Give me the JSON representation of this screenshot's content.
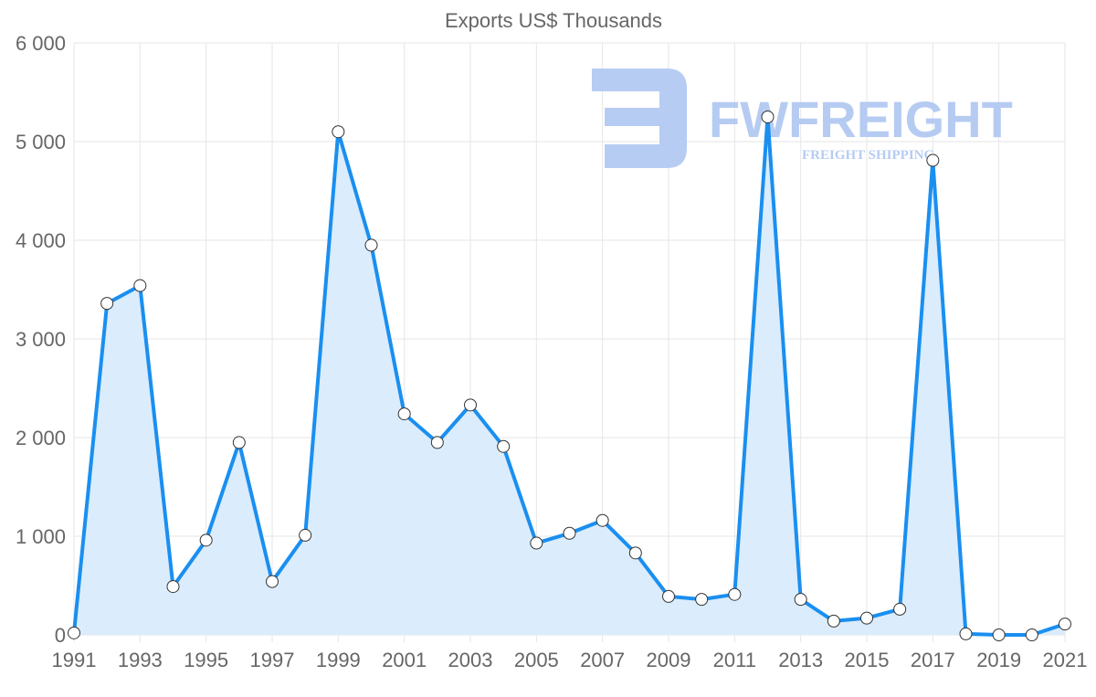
{
  "chart_data": {
    "type": "line",
    "title": "Exports US$ Thousands",
    "xlabel": "",
    "ylabel": "",
    "x": [
      1991,
      1992,
      1993,
      1994,
      1995,
      1996,
      1997,
      1998,
      1999,
      2000,
      2001,
      2002,
      2003,
      2004,
      2005,
      2006,
      2007,
      2008,
      2009,
      2010,
      2011,
      2012,
      2013,
      2014,
      2015,
      2016,
      2017,
      2018,
      2019,
      2020,
      2021
    ],
    "series": [
      {
        "name": "Exports US$ Thousands",
        "values": [
          20,
          3360,
          3540,
          490,
          960,
          1950,
          540,
          1010,
          5100,
          3950,
          2240,
          1950,
          2330,
          1910,
          930,
          1030,
          1160,
          830,
          390,
          360,
          410,
          5250,
          360,
          140,
          170,
          260,
          4810,
          10,
          0,
          0,
          110
        ]
      }
    ],
    "xticks": [
      "1991",
      "1993",
      "1995",
      "1997",
      "1999",
      "2001",
      "2003",
      "2005",
      "2007",
      "2009",
      "2011",
      "2013",
      "2015",
      "2017",
      "2019",
      "2021"
    ],
    "yticks": [
      "0",
      "1 000",
      "2 000",
      "3 000",
      "4 000",
      "5 000",
      "6 000"
    ],
    "ylim": [
      0,
      6000
    ],
    "xlim": [
      1991,
      2021
    ],
    "grid": true,
    "filled": true,
    "colors": {
      "line": "#1a8ff0",
      "fill": "#dbecfc",
      "point": "#ffffff",
      "grid": "#e6e6e6",
      "logo": "#b3c9f2"
    }
  },
  "watermark": {
    "brand": "FWFREIGHT",
    "tagline": "FREIGHT SHIPPING"
  }
}
